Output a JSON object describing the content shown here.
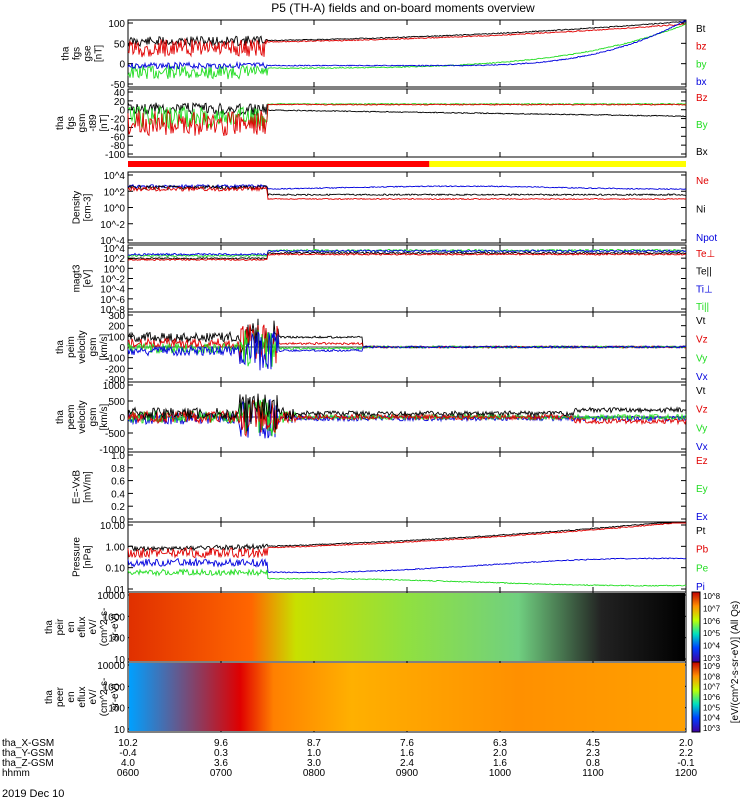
{
  "title": "P5 (TH-A) fields and on-board moments overview",
  "date_label": "2019 Dec 10",
  "colors": {
    "black": "#000000",
    "red": "#e00000",
    "green": "#22dd22",
    "blue": "#0000dd",
    "yellow": "#ffff00"
  },
  "chart_data": {
    "type": "line",
    "x_axis": {
      "label_rows": [
        {
          "name": "tha_X-GSM",
          "values": [
            "10.2",
            "9.6",
            "8.7",
            "7.6",
            "6.3",
            "4.5",
            "2.0"
          ]
        },
        {
          "name": "tha_Y-GSM",
          "values": [
            "-0.4",
            "0.3",
            "1.0",
            "1.6",
            "2.0",
            "2.3",
            "2.2"
          ]
        },
        {
          "name": "tha_Z-GSM",
          "values": [
            "4.0",
            "3.6",
            "3.0",
            "2.4",
            "1.6",
            "0.8",
            "-0.1"
          ]
        },
        {
          "name": "hhmm",
          "values": [
            "0600",
            "0700",
            "0800",
            "0900",
            "1000",
            "1100",
            "1200"
          ]
        }
      ]
    },
    "panels": [
      {
        "id": "fgs",
        "ylabel": [
          "tha",
          "fgs",
          "gse",
          "[nT]"
        ],
        "yticks": [
          "100",
          "50",
          "0",
          "-50"
        ],
        "legend": [
          {
            "name": "Bt",
            "color": "#000000"
          },
          {
            "name": "bz",
            "color": "#e00000"
          },
          {
            "name": "by",
            "color": "#22dd22"
          },
          {
            "name": "bx",
            "color": "#0000dd"
          }
        ]
      },
      {
        "id": "fgs_dif",
        "ylabel": [
          "tha",
          "fgs",
          "gsm",
          "-t89",
          "[nT]"
        ],
        "yticks": [
          "40",
          "20",
          "0",
          "-20",
          "-40",
          "-60",
          "-80",
          "-100"
        ],
        "legend": [
          {
            "name": "Bz",
            "color": "#e00000"
          },
          {
            "name": "By",
            "color": "#22dd22"
          },
          {
            "name": "Bx",
            "color": "#000000"
          }
        ]
      },
      {
        "id": "density",
        "ylabel": [
          "Density",
          "[cm-3]"
        ],
        "yticks": [
          "10^4",
          "10^2",
          "10^0",
          "10^-2",
          "10^-4"
        ],
        "legend": [
          {
            "name": "Ne",
            "color": "#e00000"
          },
          {
            "name": "Ni",
            "color": "#000000"
          },
          {
            "name": "Npot",
            "color": "#0000dd"
          }
        ]
      },
      {
        "id": "temp",
        "ylabel": [
          "magt3",
          "[eV]"
        ],
        "yticks": [
          "10^4",
          "10^2",
          "10^0",
          "10^-2",
          "10^-4",
          "10^-6",
          "10^-8"
        ],
        "legend": [
          {
            "name": "Te⊥",
            "color": "#e00000"
          },
          {
            "name": "Te||",
            "color": "#000000"
          },
          {
            "name": "Ti⊥",
            "color": "#0000dd"
          },
          {
            "name": "Ti||",
            "color": "#22dd22"
          }
        ]
      },
      {
        "id": "peim",
        "ylabel": [
          "tha",
          "peim",
          "velocity",
          "gsm",
          "[km/s]"
        ],
        "yticks": [
          "300",
          "200",
          "100",
          "0",
          "-100",
          "-200",
          "-300"
        ],
        "legend": [
          {
            "name": "Vt",
            "color": "#000000"
          },
          {
            "name": "Vz",
            "color": "#e00000"
          },
          {
            "name": "Vy",
            "color": "#22dd22"
          },
          {
            "name": "Vx",
            "color": "#0000dd"
          }
        ]
      },
      {
        "id": "peem",
        "ylabel": [
          "tha",
          "peem",
          "velocity",
          "gsm",
          "[km/s]"
        ],
        "yticks": [
          "1000",
          "500",
          "0",
          "-500",
          "-1000"
        ],
        "legend": [
          {
            "name": "Vt",
            "color": "#000000"
          },
          {
            "name": "Vz",
            "color": "#e00000"
          },
          {
            "name": "Vy",
            "color": "#22dd22"
          },
          {
            "name": "Vx",
            "color": "#0000dd"
          }
        ]
      },
      {
        "id": "efield",
        "ylabel": [
          "E=-VxB",
          "[mV/m]"
        ],
        "yticks": [
          "1.0",
          "0.8",
          "0.6",
          "0.4",
          "0.2",
          "0.0"
        ],
        "legend": [
          {
            "name": "Ez",
            "color": "#e00000"
          },
          {
            "name": "Ey",
            "color": "#22dd22"
          },
          {
            "name": "Ex",
            "color": "#0000dd"
          }
        ]
      },
      {
        "id": "pressure",
        "ylabel": [
          "Pressure",
          "[nPa]"
        ],
        "yticks": [
          "10.00",
          "1.00",
          "0.10",
          "0.01"
        ],
        "legend": [
          {
            "name": "Pt",
            "color": "#000000"
          },
          {
            "name": "Pb",
            "color": "#e00000"
          },
          {
            "name": "Pe",
            "color": "#22dd22"
          },
          {
            "name": "Pi",
            "color": "#0000dd"
          }
        ]
      },
      {
        "id": "peir",
        "ylabel": [
          "tha",
          "peir",
          "en",
          "eflux",
          "eV/",
          "(cm^2-s-",
          "sr-eV)"
        ],
        "yticks": [
          "10000",
          "1000",
          "100",
          "10"
        ]
      },
      {
        "id": "peer",
        "ylabel": [
          "tha",
          "peer",
          "en",
          "eflux",
          "eV/",
          "(cm^2-s-",
          "sr-eV)"
        ],
        "yticks": [
          "10000",
          "1000",
          "100",
          "10"
        ]
      }
    ],
    "colorbar": {
      "label": "[eV/(cm^2-s-sr-eV)] (All Qs)",
      "ion_ticks": [
        "10^8",
        "10^7",
        "10^6",
        "10^5",
        "10^4",
        "10^3"
      ],
      "electron_ticks": [
        "10^9",
        "10^8",
        "10^7",
        "10^6",
        "10^5",
        "10^4",
        "10^3"
      ]
    }
  }
}
